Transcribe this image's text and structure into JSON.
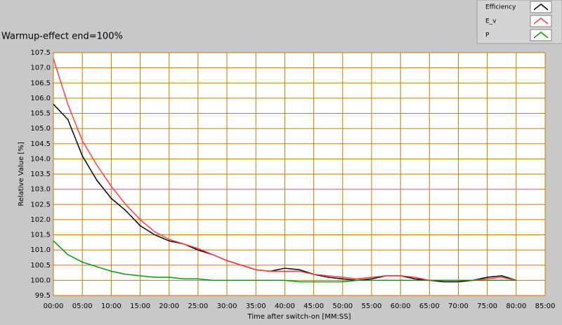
{
  "chart_data": {
    "type": "line",
    "title": "Warmup-effect end=100%",
    "x_label": "Time after switch-on [MM:SS]",
    "y_label": "Relative Value [%]",
    "x": [
      0,
      2.5,
      5,
      7.5,
      10,
      12.5,
      15,
      17.5,
      20,
      22.5,
      25,
      27.5,
      30,
      32.5,
      35,
      37.5,
      40,
      42.5,
      45,
      47.5,
      50,
      52.5,
      55,
      57.5,
      60,
      62.5,
      65,
      67.5,
      70,
      72.5,
      75,
      77.5,
      80
    ],
    "series": [
      {
        "name": "Efficiency",
        "color": "#000000",
        "values": [
          105.8,
          105.3,
          104.1,
          103.3,
          102.7,
          102.3,
          101.8,
          101.5,
          101.3,
          101.2,
          101.0,
          100.85,
          100.65,
          100.5,
          100.35,
          100.3,
          100.4,
          100.35,
          100.2,
          100.1,
          100.05,
          100.0,
          100.05,
          100.15,
          100.15,
          100.05,
          100.0,
          99.95,
          99.95,
          100.0,
          100.1,
          100.15,
          100.0
        ]
      },
      {
        "name": "E_v",
        "color": "#ff4040",
        "values": [
          107.3,
          105.8,
          104.6,
          103.8,
          103.1,
          102.5,
          102.0,
          101.6,
          101.35,
          101.2,
          101.05,
          100.85,
          100.65,
          100.5,
          100.35,
          100.3,
          100.3,
          100.3,
          100.2,
          100.15,
          100.1,
          100.05,
          100.1,
          100.15,
          100.15,
          100.1,
          100.0,
          100.0,
          100.0,
          100.0,
          100.05,
          100.1,
          100.0
        ]
      },
      {
        "name": "P",
        "color": "#00a000",
        "values": [
          101.3,
          100.85,
          100.6,
          100.45,
          100.3,
          100.2,
          100.15,
          100.1,
          100.1,
          100.05,
          100.05,
          100.0,
          100.0,
          100.0,
          100.0,
          100.0,
          100.0,
          99.95,
          99.95,
          99.95,
          99.95,
          100.0,
          100.0,
          100.0,
          100.0,
          100.0,
          100.0,
          100.0,
          100.0,
          100.0,
          100.0,
          100.0,
          100.0
        ]
      }
    ],
    "xlim": [
      0,
      85
    ],
    "xticks": [
      {
        "value": 0,
        "label": "00:00"
      },
      {
        "value": 5,
        "label": "05:00"
      },
      {
        "value": 10,
        "label": "10:00"
      },
      {
        "value": 15,
        "label": "15:00"
      },
      {
        "value": 20,
        "label": "20:00"
      },
      {
        "value": 25,
        "label": "25:00"
      },
      {
        "value": 30,
        "label": "30:00"
      },
      {
        "value": 35,
        "label": "35:00"
      },
      {
        "value": 40,
        "label": "40:00"
      },
      {
        "value": 45,
        "label": "45:00"
      },
      {
        "value": 50,
        "label": "50:00"
      },
      {
        "value": 55,
        "label": "55:00"
      },
      {
        "value": 60,
        "label": "60:00"
      },
      {
        "value": 65,
        "label": "65:00"
      },
      {
        "value": 70,
        "label": "70:00"
      },
      {
        "value": 75,
        "label": "75:00"
      },
      {
        "value": 80,
        "label": "80:00"
      },
      {
        "value": 85,
        "label": "85:00"
      }
    ],
    "ylim": [
      99.5,
      107.5
    ],
    "yticks": [
      99.5,
      {
        "value": 100,
        "label": "100.0"
      },
      100.5,
      {
        "value": 101,
        "label": "101.0"
      },
      101.5,
      {
        "value": 102,
        "label": "102.0"
      },
      102.5,
      {
        "value": 103,
        "label": "103.0"
      },
      103.5,
      {
        "value": 104,
        "label": "104.0"
      },
      104.5,
      {
        "value": 105,
        "label": "105.0"
      },
      105.5,
      {
        "value": 106,
        "label": "106.0"
      },
      106.5,
      {
        "value": 107,
        "label": "107.0"
      },
      107.5
    ],
    "grid": true,
    "grid_color": "#c87800",
    "legend": "top-right"
  }
}
